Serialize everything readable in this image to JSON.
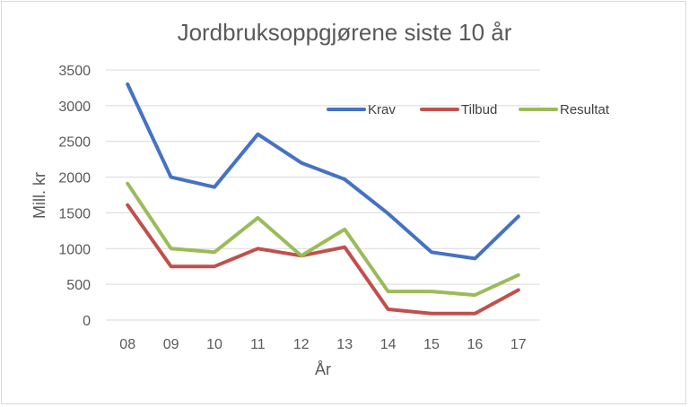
{
  "chart_data": {
    "type": "line",
    "title": "Jordbruksoppgjørene siste 10 år",
    "xlabel": "År",
    "ylabel": "Mill. kr",
    "categories": [
      "08",
      "09",
      "10",
      "11",
      "12",
      "13",
      "14",
      "15",
      "16",
      "17"
    ],
    "ylim": [
      0,
      3500
    ],
    "yticks": [
      0,
      500,
      1000,
      1500,
      2000,
      2500,
      3000,
      3500
    ],
    "grid": true,
    "legend_position": "top-right",
    "series": [
      {
        "name": "Krav",
        "color": "#4472c4",
        "values": [
          3300,
          2000,
          1860,
          2600,
          2200,
          1970,
          1490,
          950,
          860,
          1450
        ]
      },
      {
        "name": "Tilbud",
        "color": "#c0504d",
        "values": [
          1610,
          750,
          750,
          1000,
          900,
          1020,
          150,
          90,
          90,
          420
        ]
      },
      {
        "name": "Resultat",
        "color": "#9bbb59",
        "values": [
          1910,
          1000,
          950,
          1430,
          900,
          1270,
          400,
          400,
          350,
          630
        ]
      }
    ]
  }
}
